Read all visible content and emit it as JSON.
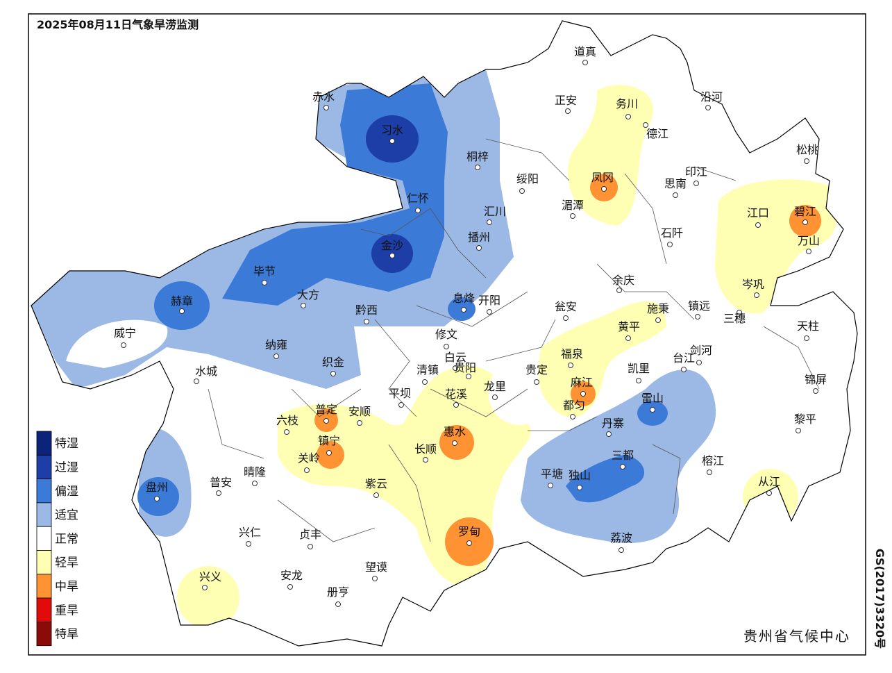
{
  "title": "2025年08月11日气象旱涝监测",
  "agency": "贵州省气候中心",
  "approval": "GS(2017)3320号",
  "legend": [
    {
      "label": "特湿",
      "color": "#0c237a"
    },
    {
      "label": "过湿",
      "color": "#1c3ea6"
    },
    {
      "label": "偏湿",
      "color": "#3b7ad6"
    },
    {
      "label": "适宜",
      "color": "#9cb9e6"
    },
    {
      "label": "正常",
      "color": "#ffffff"
    },
    {
      "label": "轻旱",
      "color": "#ffffb4"
    },
    {
      "label": "中旱",
      "color": "#ff9233"
    },
    {
      "label": "重旱",
      "color": "#e00b0b"
    },
    {
      "label": "特旱",
      "color": "#8b0a0a"
    }
  ],
  "stations": [
    "道真",
    "正安",
    "务川",
    "沿河",
    "赤水",
    "习水",
    "桐梓",
    "绥阳",
    "凤冈",
    "德江",
    "思南",
    "印江",
    "松桃",
    "仁怀",
    "汇川",
    "湄潭",
    "江口",
    "碧江",
    "石阡",
    "万山",
    "播州",
    "金沙",
    "毕节",
    "大方",
    "赫章",
    "余庆",
    "岑巩",
    "息烽",
    "开阳",
    "黔西",
    "瓮安",
    "施秉",
    "镇远",
    "三穗",
    "天柱",
    "黄平",
    "威宁",
    "修文",
    "纳雍",
    "福泉",
    "剑河",
    "台江",
    "白云",
    "织金",
    "清镇",
    "贵阳",
    "贵定",
    "凯里",
    "水城",
    "锦屏",
    "麻江",
    "龙里",
    "平坝",
    "花溪",
    "雷山",
    "普定",
    "安顺",
    "都匀",
    "六枝",
    "黎平",
    "丹寨",
    "惠水",
    "镇宁",
    "长顺",
    "三都",
    "关岭",
    "晴隆",
    "普安",
    "榕江",
    "平塘",
    "独山",
    "从江",
    "盘州",
    "紫云",
    "兴仁",
    "贞丰",
    "罗甸",
    "荔波",
    "望谟",
    "安龙",
    "兴义",
    "册亨"
  ]
}
